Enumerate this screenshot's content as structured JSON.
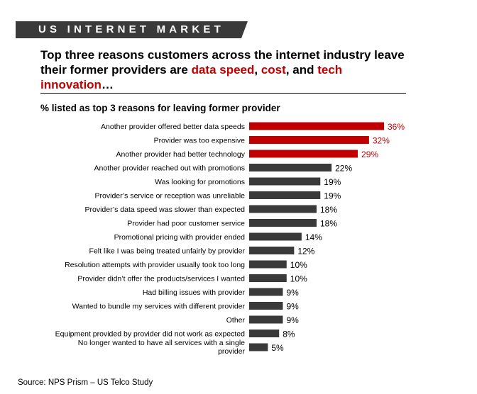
{
  "banner": {
    "text": "US INTERNET MARKET"
  },
  "headline": {
    "part1": "Top three reasons customers across the internet industry leave their former providers are ",
    "highlight1": "data speed",
    "sep1": ", ",
    "highlight2": "cost",
    "sep2": ", and ",
    "highlight3": "tech innovation",
    "ellipsis": "…"
  },
  "colors": {
    "highlight": "#c00000",
    "bar_default": "#3a3a3a",
    "banner_bg": "#3a3a3a"
  },
  "chart_data": {
    "type": "bar",
    "orientation": "horizontal",
    "title": "% listed as top 3 reasons for leaving former provider",
    "categories": [
      "Another provider offered better data speeds",
      "Provider was too expensive",
      "Another provider had better technology",
      "Another provider reached out with promotions",
      "Was looking for promotions",
      "Provider’s service or reception was unreliable",
      "Provider’s data speed was slower than expected",
      "Provider had poor customer service",
      "Promotional pricing with provider ended",
      "Felt like I was being treated unfairly by provider",
      "Resolution attempts with provider usually took too long",
      "Provider didn’t offer the products/services I wanted",
      "Had billing issues with provider",
      "Wanted to bundle my services with different provider",
      "Other",
      "Equipment provided by provider did not work as expected",
      "No longer wanted to have all services with a single provider"
    ],
    "values": [
      36,
      32,
      29,
      22,
      19,
      19,
      18,
      18,
      14,
      12,
      10,
      10,
      9,
      9,
      9,
      8,
      5
    ],
    "value_labels": [
      "36%",
      "32%",
      "29%",
      "22%",
      "19%",
      "19%",
      "18%",
      "18%",
      "14%",
      "12%",
      "10%",
      "10%",
      "9%",
      "9%",
      "9%",
      "8%",
      "5%"
    ],
    "highlighted": [
      0,
      1,
      2
    ],
    "xlim": [
      0,
      36
    ],
    "grid": false,
    "legend": "none"
  },
  "source": "Source: NPS Prism – US Telco Study"
}
